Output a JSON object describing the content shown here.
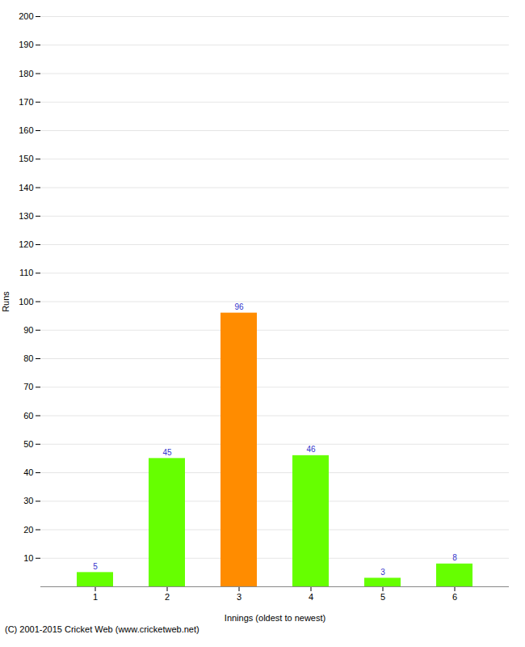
{
  "chart_data": {
    "type": "bar",
    "categories": [
      "1",
      "2",
      "3",
      "4",
      "5",
      "6"
    ],
    "values": [
      5,
      45,
      96,
      46,
      3,
      8
    ],
    "colors": [
      "#66ff00",
      "#66ff00",
      "#ff8c00",
      "#66ff00",
      "#66ff00",
      "#66ff00"
    ],
    "xlabel": "Innings (oldest to newest)",
    "ylabel": "Runs",
    "ylim": [
      0,
      200
    ],
    "yticks": [
      10,
      20,
      30,
      40,
      50,
      60,
      70,
      80,
      90,
      100,
      110,
      120,
      130,
      140,
      150,
      160,
      170,
      180,
      190,
      200
    ],
    "grid": true,
    "data_labels": true,
    "annotations": [
      "(C) 2001-2015 Cricket Web (www.cricketweb.net)"
    ]
  }
}
